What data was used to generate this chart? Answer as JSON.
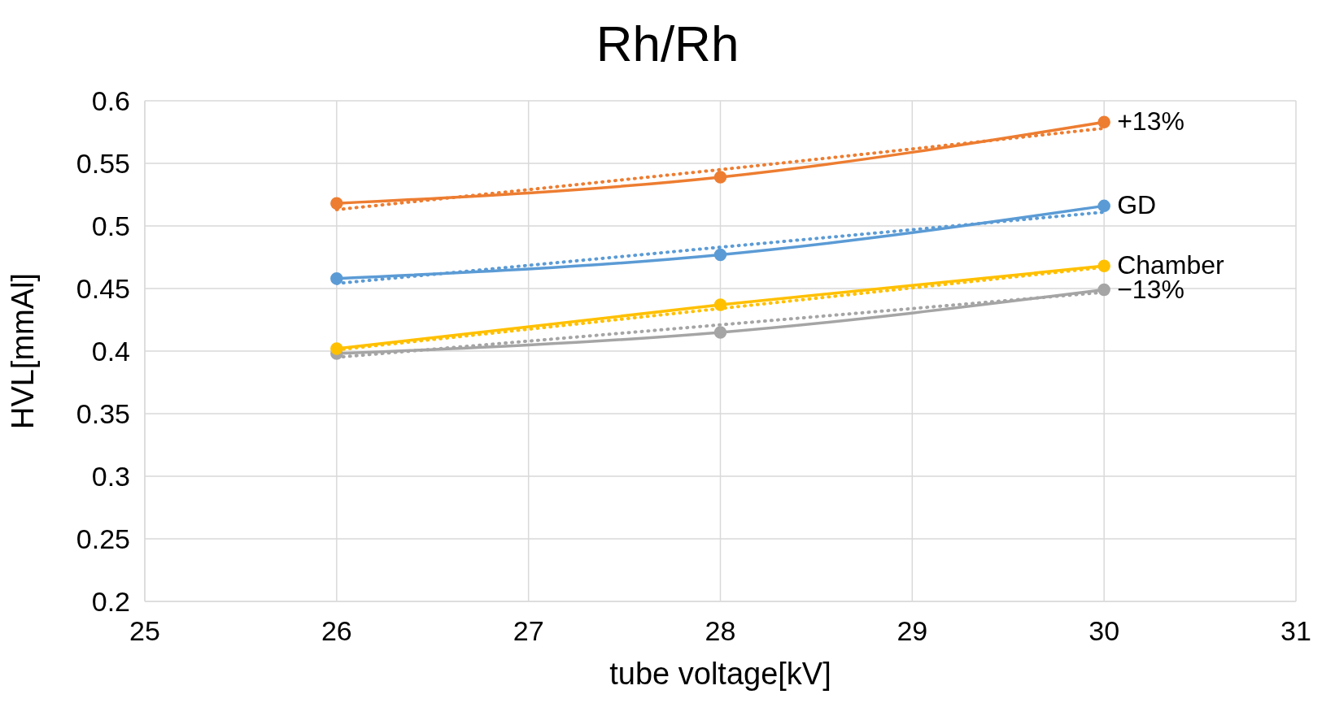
{
  "chart_data": {
    "type": "line",
    "title": "Rh/Rh",
    "xlabel": "tube voltage[kV]",
    "ylabel": "HVL[mmAl]",
    "x": [
      26,
      28,
      30
    ],
    "series": [
      {
        "name": "+13%",
        "color": "#ed7d31",
        "values": [
          0.518,
          0.539,
          0.583
        ],
        "marker": "circle",
        "line_style": "solid"
      },
      {
        "name": "GD",
        "color": "#5b9bd5",
        "values": [
          0.458,
          0.477,
          0.516
        ],
        "marker": "circle",
        "line_style": "solid"
      },
      {
        "name": "Chamber",
        "color": "#ffc000",
        "values": [
          0.402,
          0.437,
          0.468
        ],
        "marker": "circle",
        "line_style": "solid"
      },
      {
        "name": "−13%",
        "color": "#a5a5a5",
        "values": [
          0.398,
          0.415,
          0.449
        ],
        "marker": "circle",
        "line_style": "solid"
      },
      {
        "type": "line",
        "color": "#ed7d31",
        "values": [
          0.513,
          0.545,
          0.578
        ],
        "marker": "none",
        "line_style": "dotted"
      },
      {
        "type": "line",
        "color": "#5b9bd5",
        "values": [
          0.454,
          0.483,
          0.511
        ],
        "marker": "none",
        "line_style": "dotted"
      },
      {
        "type": "line",
        "color": "#ffc000",
        "values": [
          0.401,
          0.434,
          0.467
        ],
        "marker": "none",
        "line_style": "dotted"
      },
      {
        "type": "line",
        "color": "#a5a5a5",
        "values": [
          0.395,
          0.421,
          0.447
        ],
        "marker": "none",
        "line_style": "dotted"
      }
    ],
    "xlim": [
      25,
      31
    ],
    "xticks": [
      25,
      26,
      27,
      28,
      29,
      30,
      31
    ],
    "ylim": [
      0.2,
      0.6
    ],
    "yticks": [
      0.2,
      0.25,
      0.3,
      0.35,
      0.4,
      0.45,
      0.5,
      0.55,
      0.6
    ],
    "grid": true,
    "legend": false
  }
}
